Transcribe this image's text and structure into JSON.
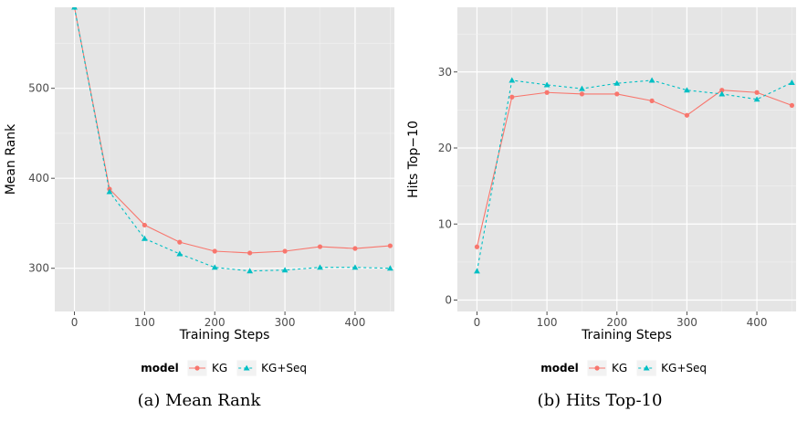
{
  "chart_data": [
    {
      "type": "line",
      "caption": "(a) Mean Rank",
      "xlabel": "Training Steps",
      "ylabel": "Mean Rank",
      "xlim": [
        -28,
        456
      ],
      "ylim": [
        252,
        590
      ],
      "xticks": [
        0,
        100,
        200,
        300,
        400
      ],
      "yticks": [
        300,
        400,
        500
      ],
      "legend_title": "model",
      "legend_position": "bottom",
      "grid": true,
      "x": [
        0,
        50,
        100,
        150,
        200,
        250,
        300,
        350,
        400,
        450
      ],
      "series": [
        {
          "name": "KG",
          "color": "#f8766d",
          "dash": "solid",
          "marker": "circle",
          "values": [
            590,
            388,
            348,
            329,
            319,
            317,
            319,
            324,
            322,
            325
          ]
        },
        {
          "name": "KG+Seq",
          "color": "#00bfc4",
          "dash": "dashed",
          "marker": "triangle",
          "values": [
            590,
            385,
            333,
            316,
            301,
            297,
            298,
            301,
            301,
            300
          ]
        }
      ]
    },
    {
      "type": "line",
      "caption": "(b) Hits Top-10",
      "xlabel": "Training Steps",
      "ylabel": "Hits Top−10",
      "xlim": [
        -28,
        456
      ],
      "ylim": [
        -1.5,
        38.5
      ],
      "xticks": [
        0,
        100,
        200,
        300,
        400
      ],
      "yticks": [
        0,
        10,
        20,
        30
      ],
      "legend_title": "model",
      "legend_position": "bottom",
      "grid": true,
      "x": [
        0,
        50,
        100,
        150,
        200,
        250,
        300,
        350,
        400,
        450
      ],
      "series": [
        {
          "name": "KG",
          "color": "#f8766d",
          "dash": "solid",
          "marker": "circle",
          "values": [
            7.0,
            26.7,
            27.3,
            27.1,
            27.1,
            26.2,
            24.3,
            27.6,
            27.3,
            25.6
          ]
        },
        {
          "name": "KG+Seq",
          "color": "#00bfc4",
          "dash": "dashed",
          "marker": "triangle",
          "values": [
            3.8,
            28.9,
            28.3,
            27.8,
            28.5,
            28.9,
            27.6,
            27.1,
            26.4,
            28.6
          ]
        }
      ]
    }
  ]
}
